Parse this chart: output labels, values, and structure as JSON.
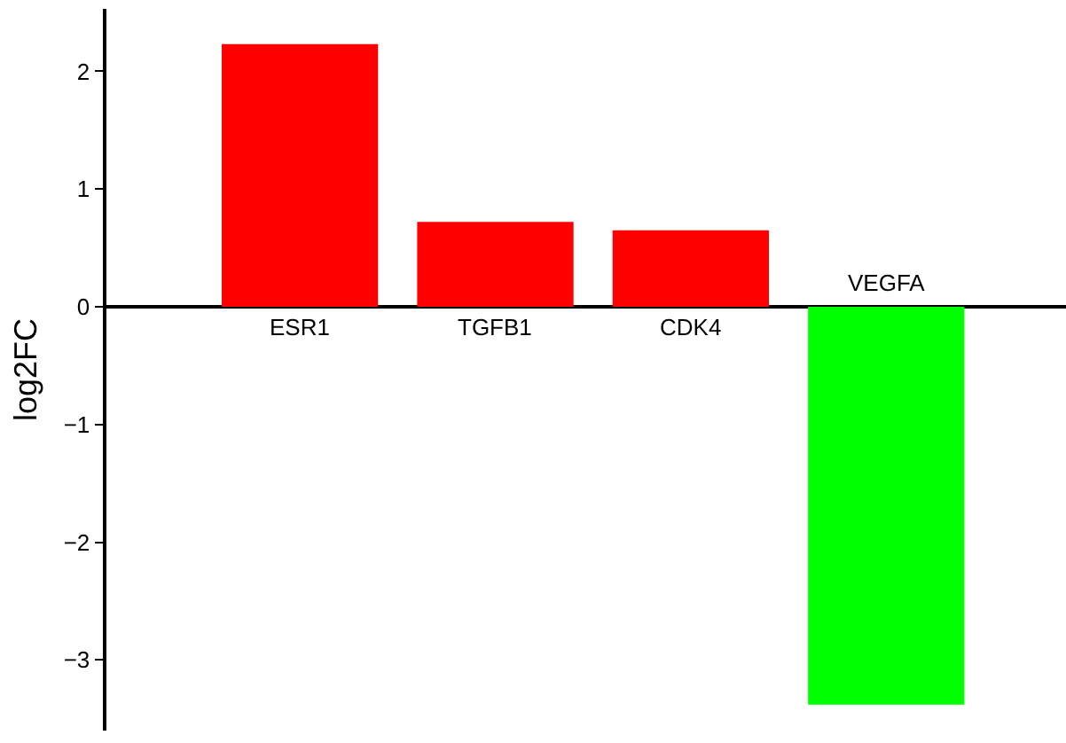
{
  "chart_data": {
    "type": "bar",
    "ylabel": "log2FC",
    "categories": [
      "ESR1",
      "TGFB1",
      "CDK4",
      "VEGFA"
    ],
    "values": [
      2.23,
      0.72,
      0.65,
      -3.38
    ],
    "colors": [
      "#ff0000",
      "#ff0000",
      "#ff0000",
      "#00ff00"
    ],
    "ylim": [
      -3.6,
      2.53
    ],
    "yticks": [
      -3,
      -2,
      -1,
      0,
      1,
      2
    ],
    "grid": false
  }
}
